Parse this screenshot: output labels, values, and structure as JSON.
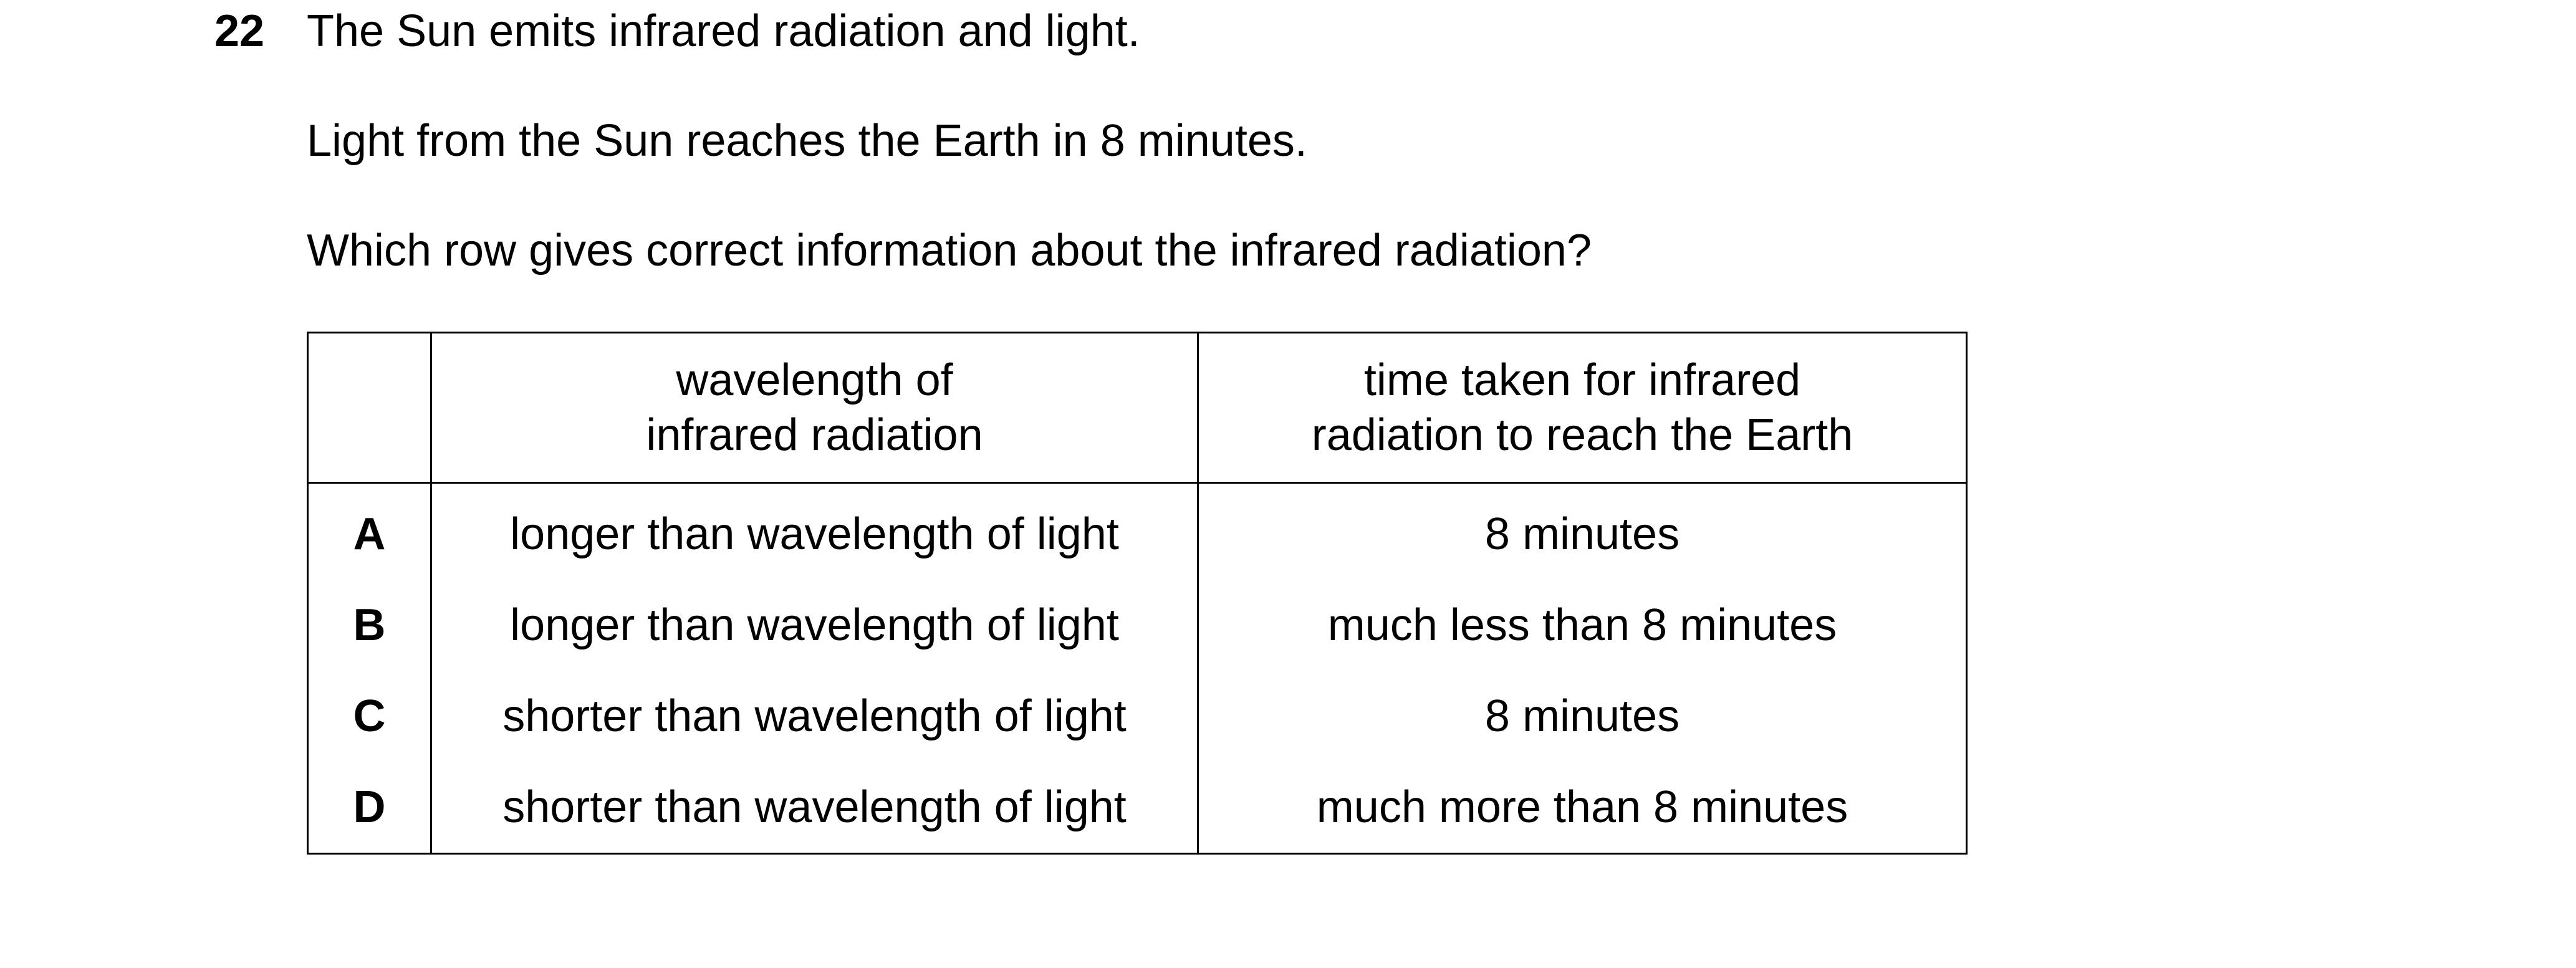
{
  "question": {
    "number": "22",
    "lines": [
      "The Sun emits infrared radiation and light.",
      "Light from the Sun reaches the Earth in 8 minutes.",
      "Which row gives correct information about the infrared radiation?"
    ]
  },
  "table": {
    "headers": {
      "letter": "",
      "wavelength_line1": "wavelength of",
      "wavelength_line2": "infrared radiation",
      "time_line1": "time taken for infrared",
      "time_line2": "radiation to reach the Earth"
    },
    "rows": [
      {
        "letter": "A",
        "wavelength": "longer than wavelength of light",
        "time": "8 minutes"
      },
      {
        "letter": "B",
        "wavelength": "longer than wavelength of light",
        "time": "much less than 8 minutes"
      },
      {
        "letter": "C",
        "wavelength": "shorter than wavelength of light",
        "time": "8 minutes"
      },
      {
        "letter": "D",
        "wavelength": "shorter than wavelength of light",
        "time": "much more than 8 minutes"
      }
    ]
  }
}
